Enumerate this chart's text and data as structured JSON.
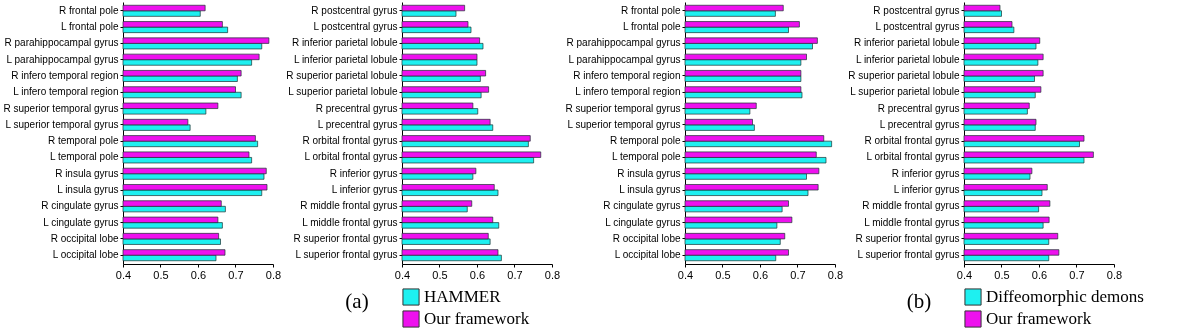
{
  "chart_data": [
    {
      "type": "bar",
      "orientation": "horizontal",
      "categories": [
        "R frontal pole",
        "L frontal pole",
        "R parahippocampal gyrus",
        "L parahippocampal gyrus",
        "R infero temporal region",
        "L infero temporal region",
        "R superior temporal gyrus",
        "L superior temporal gyrus",
        "R temporal pole",
        "L temporal pole",
        "R insula gyrus",
        "L insula gyrus",
        "R cingulate gyrus",
        "L cingulate gyrus",
        "R occipital lobe",
        "L occipital lobe"
      ],
      "series": [
        {
          "color": "#1ef0f0",
          "values": [
            0.606,
            0.679,
            0.77,
            0.743,
            0.705,
            0.715,
            0.621,
            0.579,
            0.759,
            0.743,
            0.776,
            0.77,
            0.673,
            0.665,
            0.66,
            0.648
          ]
        },
        {
          "color": "#ee11ee",
          "values": [
            0.619,
            0.665,
            0.789,
            0.763,
            0.715,
            0.7,
            0.653,
            0.573,
            0.753,
            0.736,
            0.782,
            0.784,
            0.662,
            0.653,
            0.655,
            0.672
          ]
        }
      ],
      "xlim": [
        0.4,
        0.8
      ],
      "xticks": [
        0.4,
        0.5,
        0.6,
        0.7,
        0.8
      ]
    },
    {
      "type": "bar",
      "orientation": "horizontal",
      "categories": [
        "R postcentral gyrus",
        "L postcentral gyrus",
        "R inferior parietal lobule",
        "L inferior parietal lobule",
        "R superior parietal lobule",
        "L superior parietal lobule",
        "R precentral gyrus",
        "L precentral gyrus",
        "R orbital frontal gyrus",
        "L orbital frontal gyrus",
        "R inferior gyrus",
        "L inferior gyrus",
        "R middle frontal gyrus",
        "L middle frontal gyrus",
        "R superior frontal gyrus",
        "L superior frontal gyrus"
      ],
      "series": [
        {
          "name": "HAMMER",
          "color": "#1ef0f0",
          "values": [
            0.544,
            0.584,
            0.616,
            0.6,
            0.609,
            0.611,
            0.602,
            0.642,
            0.737,
            0.751,
            0.589,
            0.656,
            0.574,
            0.658,
            0.635,
            0.665
          ]
        },
        {
          "name": "Our framework",
          "color": "#ee11ee",
          "values": [
            0.567,
            0.576,
            0.607,
            0.6,
            0.623,
            0.631,
            0.589,
            0.635,
            0.742,
            0.77,
            0.597,
            0.646,
            0.586,
            0.642,
            0.63,
            0.656
          ]
        }
      ],
      "xlim": [
        0.4,
        0.8
      ],
      "xticks": [
        0.4,
        0.5,
        0.6,
        0.7,
        0.8
      ],
      "legend": "bottom",
      "annotations": [
        "(a)"
      ]
    },
    {
      "type": "bar",
      "orientation": "horizontal",
      "categories": [
        "R frontal pole",
        "L frontal pole",
        "R parahippocampal gyrus",
        "L parahippocampal gyrus",
        "R infero temporal region",
        "L infero temporal region",
        "R superior temporal gyrus",
        "L superior temporal gyrus",
        "R temporal pole",
        "L temporal pole",
        "R insula gyrus",
        "L insula gyrus",
        "R cingulate gyrus",
        "L cingulate gyrus",
        "R occipital lobe",
        "L occipital lobe"
      ],
      "series": [
        {
          "color": "#1ef0f0",
          "values": [
            0.641,
            0.676,
            0.74,
            0.709,
            0.709,
            0.712,
            0.573,
            0.585,
            0.791,
            0.776,
            0.724,
            0.728,
            0.659,
            0.645,
            0.654,
            0.642
          ]
        },
        {
          "color": "#ee11ee",
          "values": [
            0.662,
            0.705,
            0.753,
            0.724,
            0.709,
            0.709,
            0.59,
            0.58,
            0.77,
            0.75,
            0.757,
            0.755,
            0.676,
            0.685,
            0.666,
            0.676
          ]
        }
      ],
      "xlim": [
        0.4,
        0.8
      ],
      "xticks": [
        0.4,
        0.5,
        0.6,
        0.7,
        0.8
      ]
    },
    {
      "type": "bar",
      "orientation": "horizontal",
      "categories": [
        "R postcentral gyrus",
        "L postcentral gyrus",
        "R inferior parietal lobule",
        "L inferior parietal lobule",
        "R superior parietal lobule",
        "L superior parietal lobule",
        "R precentral gyrus",
        "L precentral gyrus",
        "R orbital frontal gyrus",
        "L orbital frontal gyrus",
        "R inferior gyrus",
        "L inferior gyrus",
        "R middle frontal gyrus",
        "L middle frontal gyrus",
        "R superior frontal gyrus",
        "L superior frontal gyrus"
      ],
      "series": [
        {
          "name": "Diffeomorphic demons",
          "color": "#1ef0f0",
          "values": [
            0.5,
            0.533,
            0.592,
            0.597,
            0.588,
            0.59,
            0.569,
            0.59,
            0.708,
            0.72,
            0.576,
            0.608,
            0.599,
            0.611,
            0.626,
            0.626
          ]
        },
        {
          "name": "Our framework",
          "color": "#ee11ee",
          "values": [
            0.496,
            0.528,
            0.602,
            0.611,
            0.611,
            0.605,
            0.574,
            0.592,
            0.72,
            0.745,
            0.581,
            0.622,
            0.629,
            0.627,
            0.65,
            0.653
          ]
        }
      ],
      "xlim": [
        0.4,
        0.8
      ],
      "xticks": [
        0.4,
        0.5,
        0.6,
        0.7,
        0.8
      ],
      "legend": "bottom",
      "annotations": [
        "(b)"
      ]
    }
  ]
}
